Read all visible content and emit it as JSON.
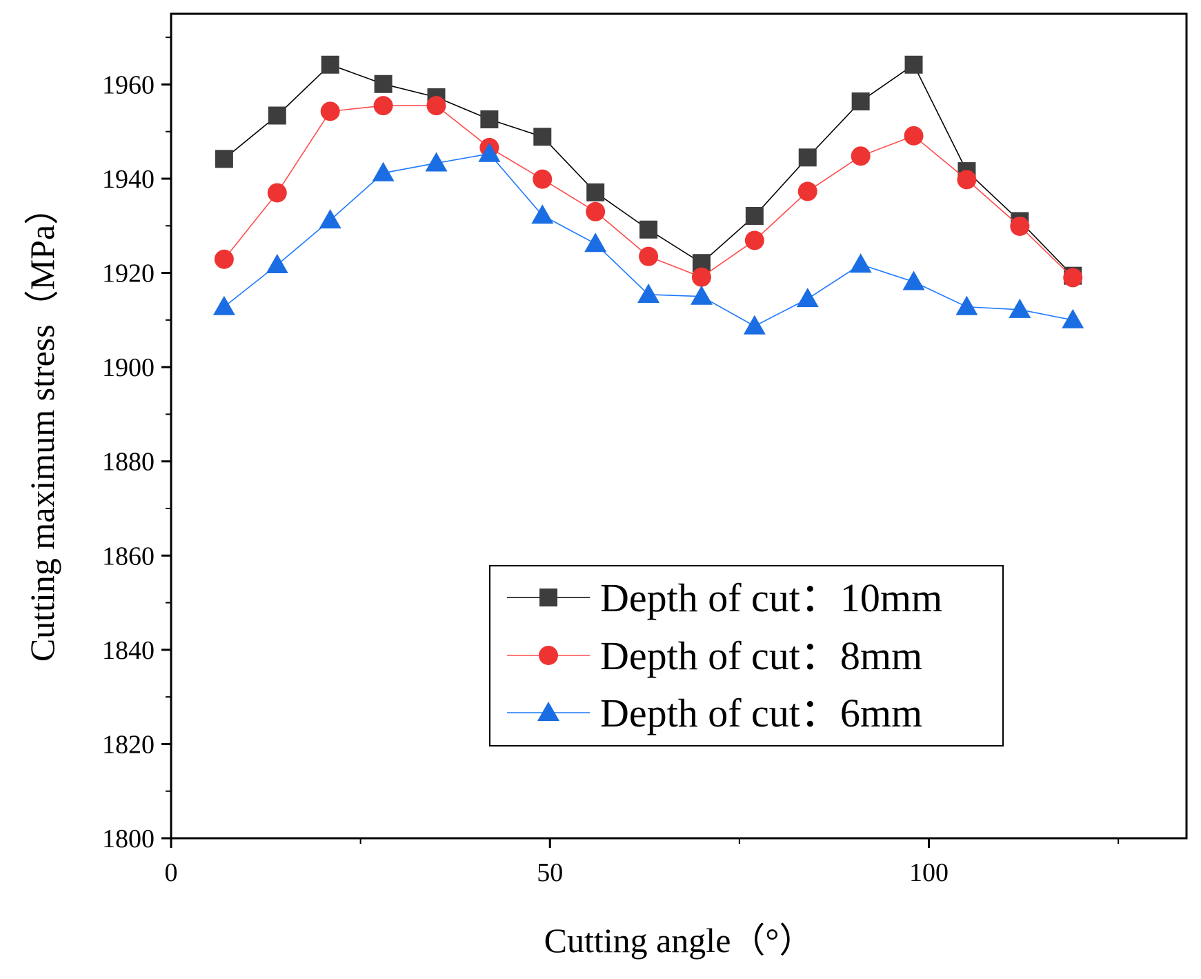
{
  "chart_data": {
    "type": "line",
    "xlabel": "Cutting angle（°）",
    "ylabel": "Cutting maximum stress（MPa）",
    "xlim": [
      0,
      134
    ],
    "ylim": [
      1800,
      1975
    ],
    "x_ticks": [
      0,
      50,
      100
    ],
    "x_minor_ticks": [
      25,
      75,
      125
    ],
    "y_ticks": [
      1800,
      1820,
      1840,
      1860,
      1880,
      1900,
      1920,
      1940,
      1960
    ],
    "x": [
      7,
      14,
      21,
      28,
      35,
      42,
      49,
      56,
      63,
      70,
      77,
      84,
      91,
      98,
      105,
      112,
      119
    ],
    "series": [
      {
        "name": "Depth of cut：10mm",
        "marker": "square",
        "line_color": "#000000",
        "marker_color": "#3d3d3d",
        "values": [
          1944.2,
          1953.4,
          1964.2,
          1960.1,
          1957.3,
          1952.6,
          1948.9,
          1937.1,
          1929.2,
          1922.1,
          1932.1,
          1944.5,
          1956.4,
          1964.2,
          1941.6,
          1931.0,
          1919.4
        ]
      },
      {
        "name": "Depth of cut：8mm",
        "marker": "circle",
        "line_color": "#ff4b4b",
        "marker_color": "#ee3333",
        "values": [
          1922.9,
          1937.0,
          1954.3,
          1955.5,
          1955.5,
          1946.6,
          1939.9,
          1933.0,
          1923.5,
          1919.1,
          1926.9,
          1937.3,
          1944.8,
          1949.1,
          1939.8,
          1929.9,
          1919.0
        ]
      },
      {
        "name": "Depth of cut：6mm",
        "marker": "triangle",
        "line_color": "#1e78ff",
        "marker_color": "#1b6de3",
        "values": [
          1912.8,
          1921.7,
          1931.2,
          1941.2,
          1943.3,
          1945.3,
          1932.2,
          1926.2,
          1915.4,
          1915.0,
          1908.7,
          1914.5,
          1921.8,
          1918.1,
          1912.8,
          1912.2,
          1910.0
        ]
      }
    ],
    "legend_position": "lower-right"
  }
}
